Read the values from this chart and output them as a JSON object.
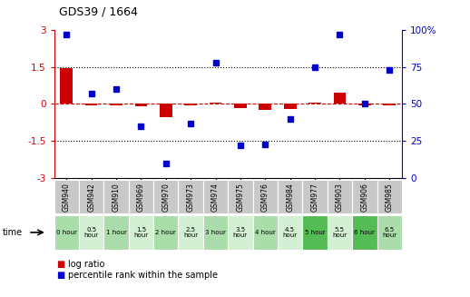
{
  "title": "GDS39 / 1664",
  "samples": [
    "GSM940",
    "GSM942",
    "GSM910",
    "GSM969",
    "GSM970",
    "GSM973",
    "GSM974",
    "GSM975",
    "GSM976",
    "GSM984",
    "GSM977",
    "GSM903",
    "GSM906",
    "GSM985"
  ],
  "time_labels": [
    "0 hour",
    "0.5\nhour",
    "1 hour",
    "1.5\nhour",
    "2 hour",
    "2.5\nhour",
    "3 hour",
    "3.5\nhour",
    "4 hour",
    "4.5\nhour",
    "5 hour",
    "5.5\nhour",
    "6 hour",
    "6.5\nhour"
  ],
  "time_colors": [
    "#aaddaa",
    "#d4f0d4",
    "#aaddaa",
    "#d4f0d4",
    "#aaddaa",
    "#d4f0d4",
    "#aaddaa",
    "#d4f0d4",
    "#aaddaa",
    "#d4f0d4",
    "#55bb55",
    "#d4f0d4",
    "#55bb55",
    "#aaddaa"
  ],
  "log_ratio": [
    1.45,
    -0.05,
    -0.05,
    -0.1,
    -0.55,
    -0.05,
    0.07,
    -0.15,
    -0.25,
    -0.22,
    0.05,
    0.45,
    -0.05,
    -0.05
  ],
  "percentile": [
    97,
    57,
    60,
    35,
    10,
    37,
    78,
    22,
    23,
    40,
    75,
    97,
    50,
    73
  ],
  "ylim_left": [
    -3,
    3
  ],
  "ylim_right": [
    0,
    100
  ],
  "yticks_left": [
    -3,
    -1.5,
    0,
    1.5,
    3
  ],
  "yticks_right": [
    0,
    25,
    50,
    75,
    100
  ],
  "bar_color": "#cc0000",
  "dot_color": "#0000cc",
  "zero_line_color": "#cc0000",
  "sample_box_color": "#c8c8c8",
  "sample_box_edge": "#ffffff"
}
